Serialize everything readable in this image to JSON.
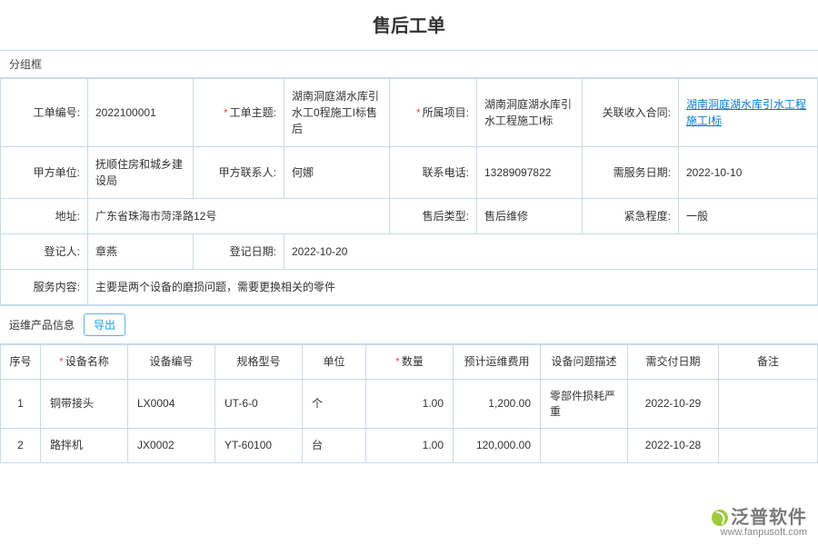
{
  "title": "售后工单",
  "group_label": "分组框",
  "form": {
    "order_no": {
      "label": "工单编号:",
      "value": "2022100001"
    },
    "subject": {
      "label": "工单主题:",
      "value": "湖南洞庭湖水库引水工0程施工I标售后",
      "required": true
    },
    "project": {
      "label": "所属项目:",
      "value": "湖南洞庭湖水库引水工程施工I标",
      "required": true
    },
    "contract": {
      "label": "关联收入合同:",
      "value": "湖南洞庭湖水库引水工程施工I标"
    },
    "party_a": {
      "label": "甲方单位:",
      "value": "抚顺住房和城乡建设局"
    },
    "contact": {
      "label": "甲方联系人:",
      "value": "何娜"
    },
    "phone": {
      "label": "联系电话:",
      "value": "13289097822"
    },
    "svc_date": {
      "label": "需服务日期:",
      "value": "2022-10-10"
    },
    "address": {
      "label": "地址:",
      "value": "广东省珠海市菏泽路12号"
    },
    "aftype": {
      "label": "售后类型:",
      "value": "售后维修"
    },
    "urgency": {
      "label": "紧急程度:",
      "value": "一般"
    },
    "register": {
      "label": "登记人:",
      "value": "章燕"
    },
    "reg_date": {
      "label": "登记日期:",
      "value": "2022-10-20"
    },
    "content": {
      "label": "服务内容:",
      "value": "主要是两个设备的磨损问题，需要更换相关的零件"
    }
  },
  "products": {
    "section_label": "运维产品信息",
    "export_label": "导出",
    "columns": {
      "idx": "序号",
      "name": "设备名称",
      "code": "设备编号",
      "spec": "规格型号",
      "unit": "单位",
      "qty": "数量",
      "cost": "预计运维费用",
      "issue": "设备问题描述",
      "due": "需交付日期",
      "remark": "备注"
    },
    "required": {
      "name": true,
      "qty": true
    },
    "rows": [
      {
        "idx": "1",
        "name": "铜带接头",
        "code": "LX0004",
        "spec": "UT-6-0",
        "unit": "个",
        "qty": "1.00",
        "cost": "1,200.00",
        "issue": "零部件损耗严重",
        "due": "2022-10-29",
        "remark": ""
      },
      {
        "idx": "2",
        "name": "路拌机",
        "code": "JX0002",
        "spec": "YT-60100",
        "unit": "台",
        "qty": "1.00",
        "cost": "120,000.00",
        "issue": "",
        "due": "2022-10-28",
        "remark": ""
      }
    ]
  },
  "logo": {
    "text": "泛普软件",
    "url": "www.fanpusoft.com"
  },
  "colors": {
    "border": "#c8dbe8",
    "link": "#0a7cc4",
    "required": "#d9534f",
    "btn_border": "#5bb6e6",
    "btn_text": "#1c9cd8"
  }
}
